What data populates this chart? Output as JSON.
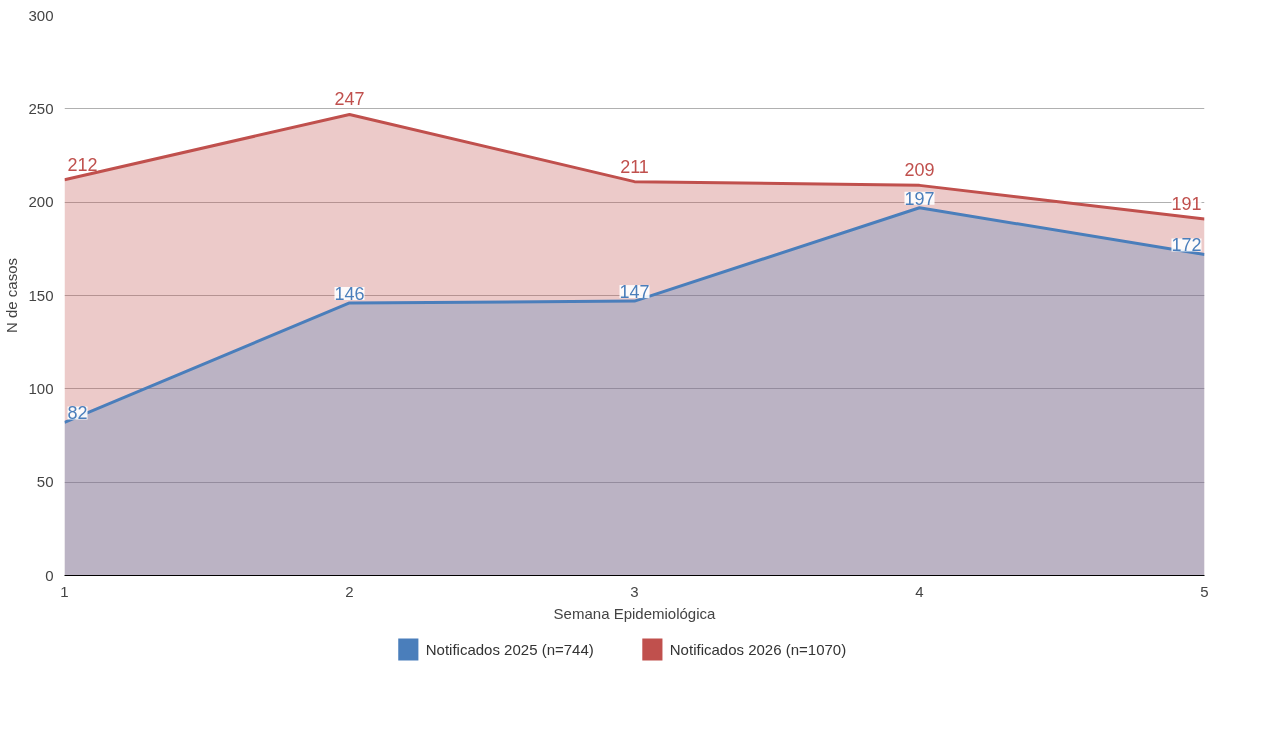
{
  "chart_data": {
    "type": "area",
    "xlabel": "Semana Epidemiológica",
    "ylabel": "N de casos",
    "x": [
      1,
      2,
      3,
      4,
      5
    ],
    "xlim": [
      1,
      5
    ],
    "xticks": [
      1,
      2,
      3,
      4,
      5
    ],
    "ylim": [
      0,
      300
    ],
    "yticks": [
      0,
      50,
      100,
      150,
      200,
      250,
      300
    ],
    "grid": "y",
    "legend": "bottom",
    "data_labels": true,
    "series": [
      {
        "name": "Notificados 2025 (n=744)",
        "color": "#4a7ebb",
        "values": [
          82,
          146,
          147,
          197,
          172
        ]
      },
      {
        "name": "Notificados 2026 (n=1070)",
        "color": "#c0504d",
        "values": [
          212,
          247,
          211,
          209,
          191
        ]
      }
    ]
  }
}
